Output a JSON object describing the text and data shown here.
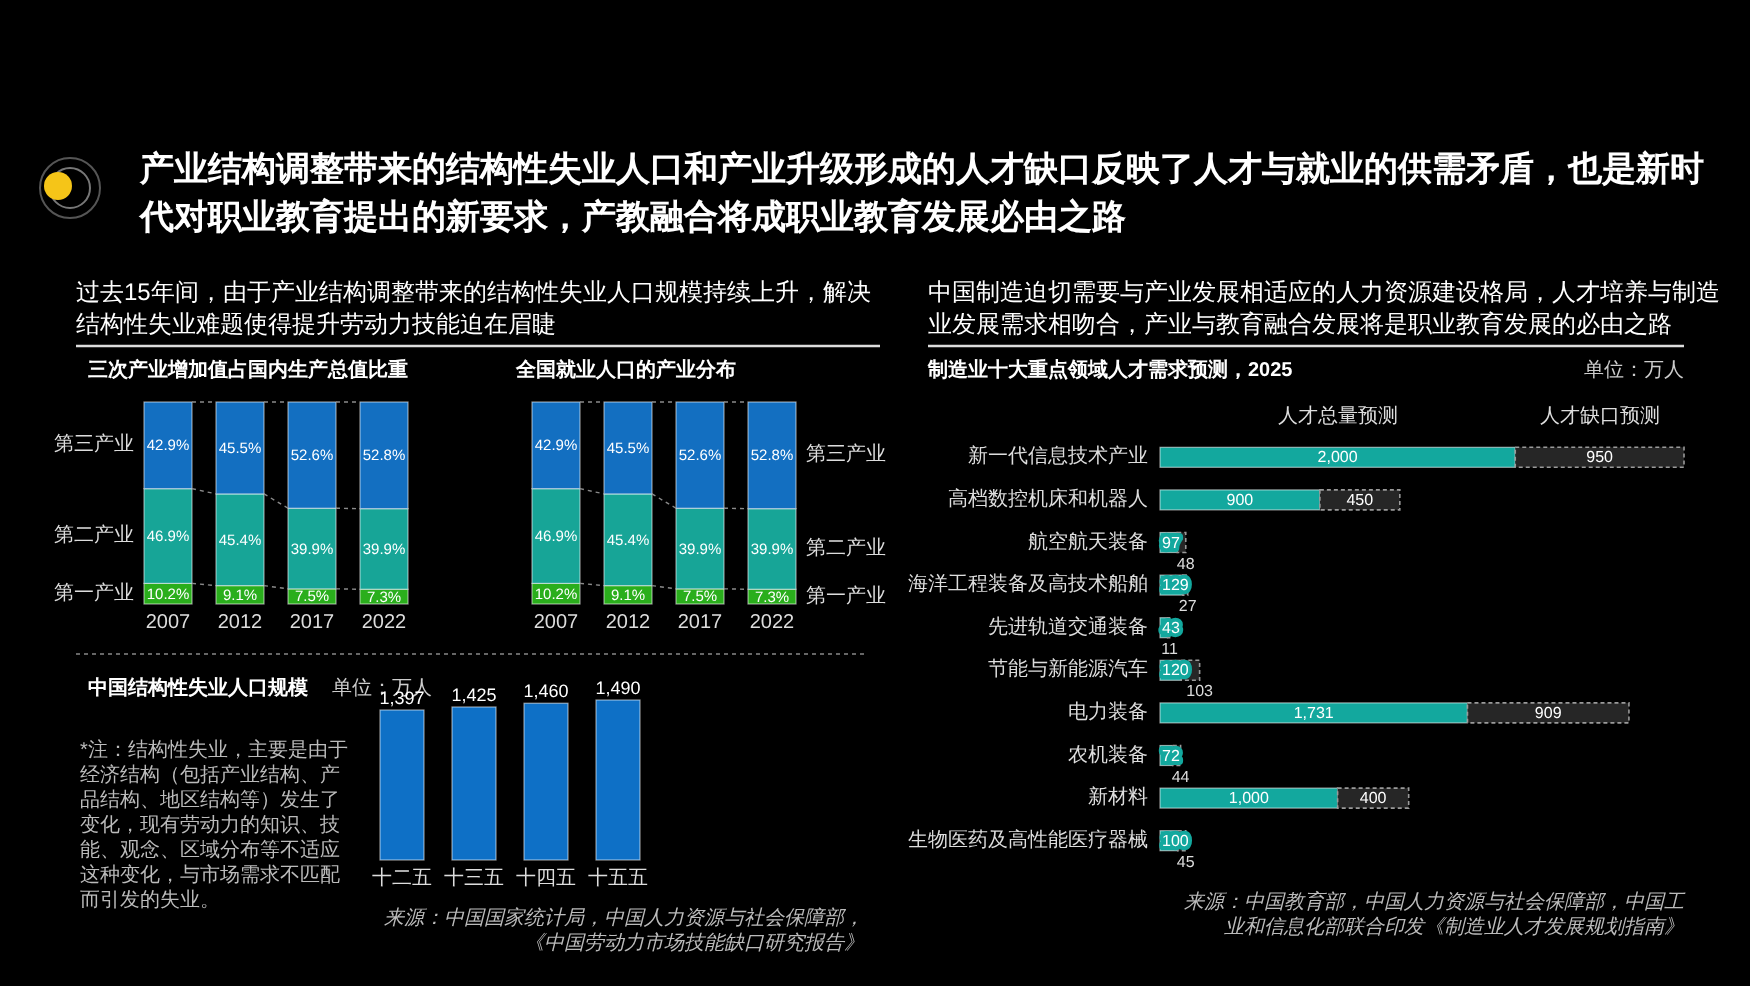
{
  "chart_data": [
    {
      "type": "other",
      "title": "产业结构调整带来的结构性失业人口和产业升级形成的人才缺口反映了人才与就业的供需矛盾，也是新时代对职业教育提出的新要求，产教融合将成职业教育发展必由之路",
      "annotations": [
        "过去15年间，由于产业结构调整带来的结构性失业人口规模持续上升，解决结构性失业难题使得提升劳动力技能迫在眉睫",
        "中国制造迫切需要与产业发展相适应的人力资源建设格局，人才培养与制造业发展需求相吻合，产业与教育融合发展将是职业教育发展的必由之路"
      ]
    },
    {
      "type": "bar",
      "stacked": true,
      "title": "三次产业增加值占国内生产总值比重",
      "categories": [
        "2007",
        "2012",
        "2017",
        "2022"
      ],
      "series": [
        {
          "name": "第一产业",
          "color": "#2aae1c",
          "values": [
            10.2,
            9.1,
            7.5,
            7.3
          ],
          "value_labels": [
            "10.2%",
            "9.1%",
            "7.5%",
            "7.3%"
          ]
        },
        {
          "name": "第二产业",
          "color": "#17a597",
          "values": [
            46.9,
            45.4,
            39.9,
            39.9
          ],
          "value_labels": [
            "46.9%",
            "45.4%",
            "39.9%",
            "39.9%"
          ]
        },
        {
          "name": "第三产业",
          "color": "#136fc1",
          "values": [
            42.9,
            45.5,
            52.6,
            52.8
          ],
          "value_labels": [
            "42.9%",
            "45.5%",
            "52.6%",
            "52.8%"
          ]
        }
      ]
    },
    {
      "type": "bar",
      "stacked": true,
      "title": "全国就业人口的产业分布",
      "categories": [
        "2007",
        "2012",
        "2017",
        "2022"
      ],
      "series": [
        {
          "name": "第一产业",
          "color": "#2aae1c",
          "values": [
            10.2,
            9.1,
            7.5,
            7.3
          ],
          "value_labels": [
            "10.2%",
            "9.1%",
            "7.5%",
            "7.3%"
          ]
        },
        {
          "name": "第二产业",
          "color": "#17a597",
          "values": [
            46.9,
            45.4,
            39.9,
            39.9
          ],
          "value_labels": [
            "46.9%",
            "45.4%",
            "39.9%",
            "39.9%"
          ]
        },
        {
          "name": "第三产业",
          "color": "#136fc1",
          "values": [
            42.9,
            45.5,
            52.6,
            52.8
          ],
          "value_labels": [
            "42.9%",
            "45.5%",
            "52.6%",
            "52.8%"
          ]
        }
      ]
    },
    {
      "type": "bar",
      "title": "中国结构性失业人口规模",
      "subtitle": "单位：万人",
      "categories": [
        "十二五",
        "十三五",
        "十四五",
        "十五五"
      ],
      "values": [
        1397,
        1425,
        1460,
        1490
      ],
      "value_labels": [
        "1,397",
        "1,425",
        "1,460",
        "1,490"
      ],
      "color": "#0e70c6",
      "annotations": [
        "*注：结构性失业，主要是由于经济结构（包括产业结构、产品结构、地区结构等）发生了变化，现有劳动力的知识、技能、观念、区域分布等不适应这种变化，与市场需求不匹配而引发的失业。",
        "来源：中国国家统计局，中国人力资源与社会保障部，《中国劳动力市场技能缺口研究报告》"
      ]
    },
    {
      "type": "bar",
      "orientation": "horizontal",
      "stacked": true,
      "title": "制造业十大重点领域人才需求预测，2025",
      "subtitle": "单位：万人",
      "categories": [
        "新一代信息技术产业",
        "高档数控机床和机器人",
        "航空航天装备",
        "海洋工程装备及高技术船舶",
        "先进轨道交通装备",
        "节能与新能源汽车",
        "电力装备",
        "农机装备",
        "新材料",
        "生物医药及高性能医疗器械"
      ],
      "series": [
        {
          "name": "人才总量预测",
          "color": "#13a89e",
          "values": [
            2000,
            900,
            97,
            129,
            43,
            120,
            1731,
            72,
            1000,
            100
          ],
          "value_labels": [
            "2,000",
            "900",
            "97",
            "129",
            "43",
            "120",
            "1,731",
            "72",
            "1,000",
            "100"
          ]
        },
        {
          "name": "人才缺口预测",
          "color": "#262626",
          "values": [
            950,
            450,
            48,
            27,
            11,
            103,
            909,
            44,
            400,
            45
          ],
          "value_labels": [
            "950",
            "450",
            "48",
            "27",
            "11",
            "103",
            "909",
            "44",
            "400",
            "45"
          ]
        }
      ],
      "annotations": [
        "来源：中国教育部，中国人力资源与社会保障部，中国工业和信息化部联合印发《制造业人才发展规划指南》"
      ]
    }
  ]
}
